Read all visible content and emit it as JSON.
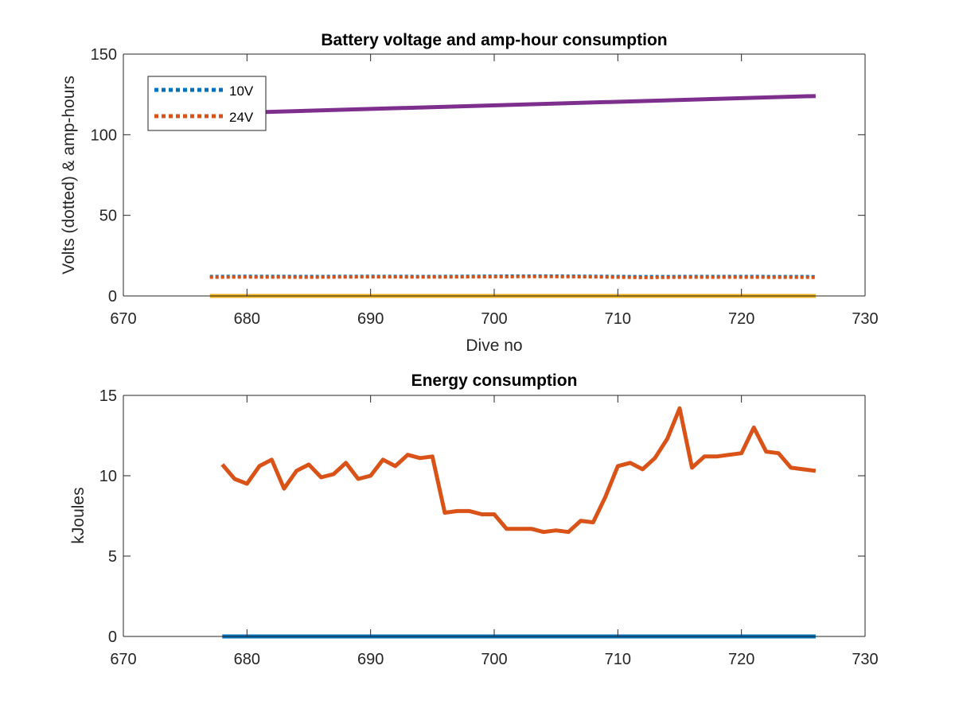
{
  "chart_data": [
    {
      "type": "line",
      "title": "Battery voltage and amp-hour consumption",
      "xlabel": "Dive no",
      "ylabel": "Volts (dotted) & amp-hours",
      "xlim": [
        670,
        730
      ],
      "ylim": [
        0,
        150
      ],
      "xticks": [
        "670",
        "680",
        "690",
        "700",
        "710",
        "720",
        "730"
      ],
      "yticks": [
        "0",
        "50",
        "100",
        "150"
      ],
      "grid": false,
      "legend_position": "top-left",
      "series": [
        {
          "name": "10V",
          "style": "dotted",
          "color": "#0072BD",
          "x": [
            677,
            680,
            685,
            690,
            695,
            700,
            704,
            708,
            712,
            716,
            720,
            726
          ],
          "y": [
            12.1,
            12.2,
            12.1,
            12.2,
            12.1,
            12.3,
            12.4,
            12.2,
            12.0,
            12.1,
            12.1,
            12.0
          ],
          "in_legend": true
        },
        {
          "name": "24V",
          "style": "dotted",
          "color": "#D95319",
          "x": [
            677,
            680,
            685,
            690,
            695,
            700,
            704,
            708,
            712,
            716,
            720,
            726
          ],
          "y": [
            11.6,
            11.7,
            11.6,
            11.8,
            11.7,
            11.9,
            12.0,
            11.8,
            11.4,
            11.6,
            11.6,
            11.5
          ],
          "in_legend": true
        },
        {
          "style": "solid",
          "color": "#EDB120",
          "x": [
            677,
            726
          ],
          "y": [
            0,
            0
          ],
          "in_legend": false
        },
        {
          "style": "solid",
          "color": "#7E2F8E",
          "x": [
            681,
            726
          ],
          "y": [
            114,
            124
          ],
          "in_legend": false
        }
      ]
    },
    {
      "type": "line",
      "title": "Energy consumption",
      "xlabel": "",
      "ylabel": "kJoules",
      "xlim": [
        670,
        730
      ],
      "ylim": [
        0,
        15
      ],
      "xticks": [
        "670",
        "680",
        "690",
        "700",
        "710",
        "720",
        "730"
      ],
      "yticks": [
        "0",
        "5",
        "10",
        "15"
      ],
      "grid": false,
      "series": [
        {
          "style": "solid",
          "color": "#0072BD",
          "x": [
            678,
            726
          ],
          "y": [
            0,
            0
          ]
        },
        {
          "style": "solid",
          "color": "#D95319",
          "x": [
            678,
            679,
            680,
            681,
            682,
            683,
            684,
            685,
            686,
            687,
            688,
            689,
            690,
            691,
            692,
            693,
            694,
            695,
            696,
            697,
            698,
            699,
            700,
            701,
            702,
            703,
            704,
            705,
            706,
            707,
            708,
            709,
            710,
            711,
            712,
            713,
            714,
            715,
            716,
            717,
            718,
            719,
            720,
            721,
            722,
            723,
            724,
            725,
            726
          ],
          "y": [
            10.7,
            9.8,
            9.5,
            10.6,
            11.0,
            9.2,
            10.3,
            10.7,
            9.9,
            10.1,
            10.8,
            9.8,
            10.0,
            11.0,
            10.6,
            11.3,
            11.1,
            11.2,
            7.7,
            7.8,
            7.8,
            7.6,
            7.6,
            6.7,
            6.7,
            6.7,
            6.5,
            6.6,
            6.5,
            7.2,
            7.1,
            8.7,
            10.6,
            10.8,
            10.4,
            11.1,
            12.3,
            14.2,
            10.5,
            11.2,
            11.2,
            11.3,
            11.4,
            13.0,
            11.5,
            11.4,
            10.5,
            10.4,
            10.3
          ]
        }
      ]
    }
  ]
}
